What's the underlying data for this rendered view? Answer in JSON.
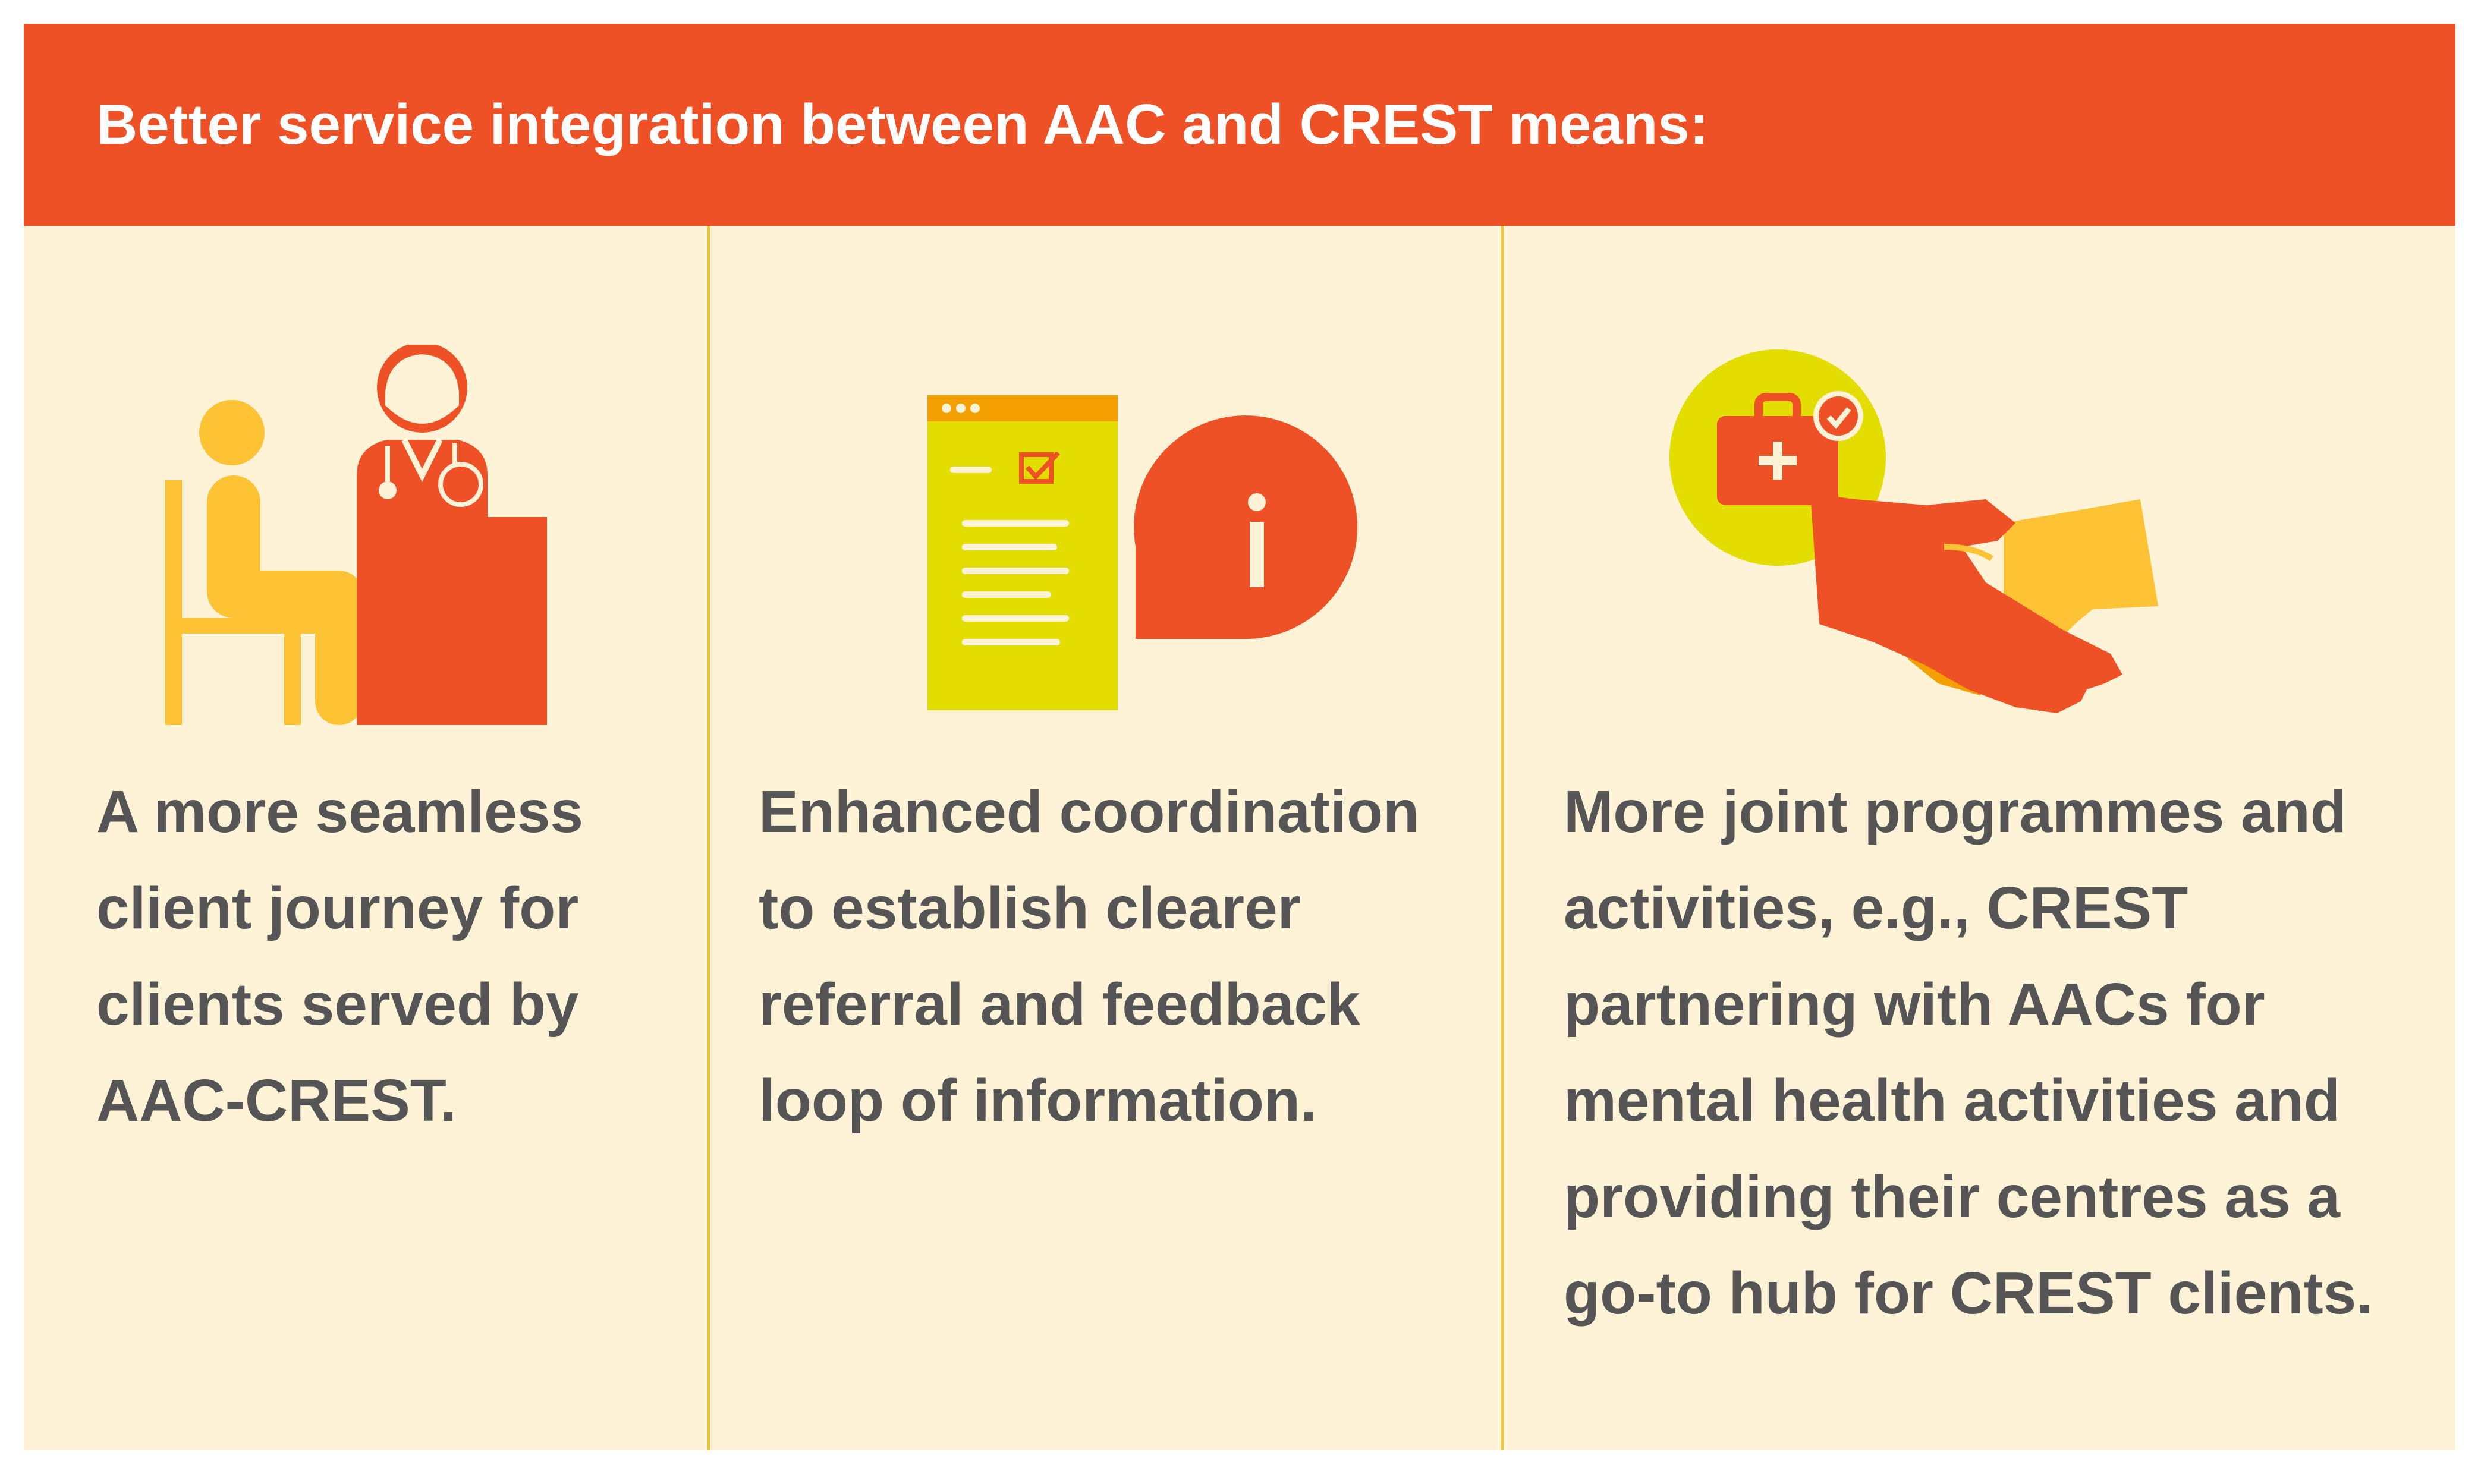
{
  "header": {
    "title": "Better service integration between AAC and CREST means:"
  },
  "colors": {
    "header_bg": "#ef5127",
    "panel_bg": "#fef2d7",
    "divider": "#f4c430",
    "body_text": "#555555",
    "accent_orange": "#ef5127",
    "accent_yellow": "#fdc334",
    "accent_lime": "#e3dd00"
  },
  "columns": [
    {
      "icon": "client-at-doctor-desk-icon",
      "lines": [
        "A more seamless",
        "client journey for",
        "clients served by",
        "AAC-CREST."
      ]
    },
    {
      "icon": "document-and-info-bubble-icon",
      "lines": [
        "Enhanced coordination",
        "to establish clearer",
        "referral and feedback",
        "loop of information."
      ]
    },
    {
      "icon": "medical-kit-handshake-icon",
      "lines": [
        "More joint programmes and",
        "activities, e.g., CREST",
        "partnering with AACs for",
        "mental health activities and",
        "providing their centres as a",
        "go-to hub for CREST clients."
      ]
    }
  ]
}
